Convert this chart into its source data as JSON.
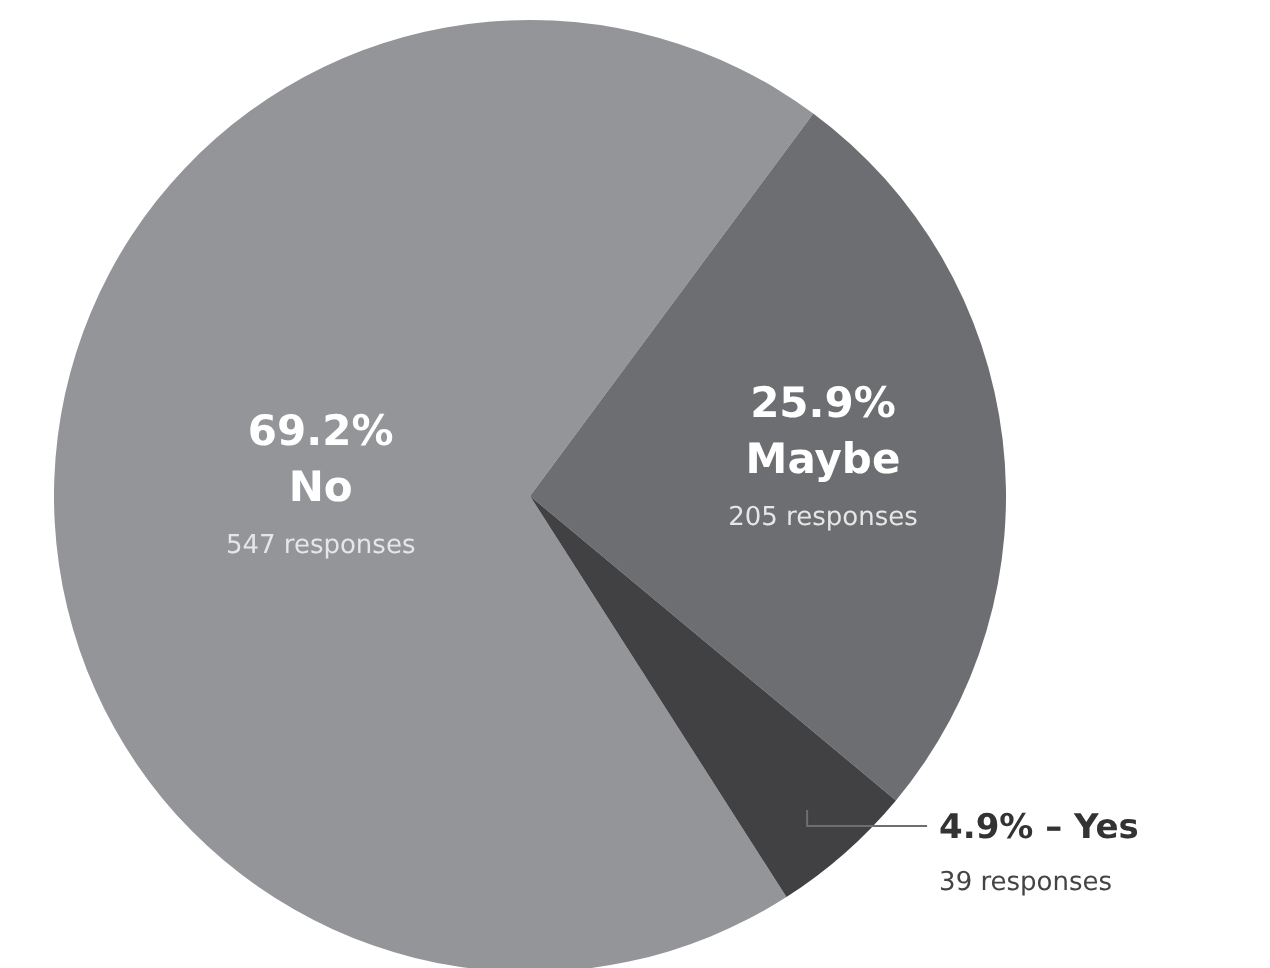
{
  "chart_data": {
    "type": "pie",
    "categories": [
      "No",
      "Maybe",
      "Yes"
    ],
    "values": [
      69.2,
      25.9,
      4.9
    ],
    "colors": [
      "#939598",
      "#6d6e71",
      "#414042"
    ],
    "value_labels": [
      "69.2%",
      "25.9%",
      "4.9%"
    ],
    "annotations": [
      "547 responses",
      "205 responses",
      "39 responses"
    ],
    "legend": false
  }
}
